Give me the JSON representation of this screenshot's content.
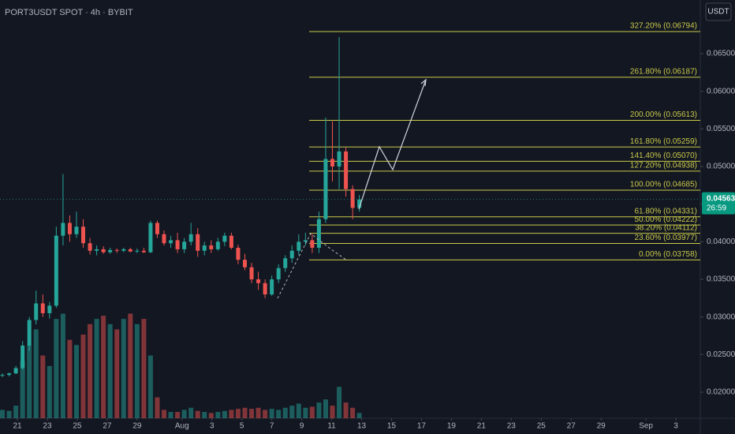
{
  "chart_data": {
    "type": "candlestick",
    "title": "PORT3USDT SPOT · 4h · BYBIT",
    "currency": "USDT",
    "up_color": "#26a69a",
    "down_color": "#ef5350",
    "fib_color": "#c9c94a",
    "xlim": [
      -1.16,
      45.63
    ],
    "xticks": [
      {
        "value": 0,
        "label": "21"
      },
      {
        "value": 2,
        "label": "23"
      },
      {
        "value": 4,
        "label": "25"
      },
      {
        "value": 6,
        "label": "27"
      },
      {
        "value": 8,
        "label": "29"
      },
      {
        "value": 11,
        "label": "Aug"
      },
      {
        "value": 13,
        "label": "3"
      },
      {
        "value": 15,
        "label": "5"
      },
      {
        "value": 17,
        "label": "7"
      },
      {
        "value": 19,
        "label": "9"
      },
      {
        "value": 21,
        "label": "11"
      },
      {
        "value": 23,
        "label": "13"
      },
      {
        "value": 25,
        "label": "15"
      },
      {
        "value": 27,
        "label": "17"
      },
      {
        "value": 29,
        "label": "19"
      },
      {
        "value": 31,
        "label": "21"
      },
      {
        "value": 33,
        "label": "23"
      },
      {
        "value": 35,
        "label": "25"
      },
      {
        "value": 37,
        "label": "27"
      },
      {
        "value": 39,
        "label": "29"
      },
      {
        "value": 42,
        "label": "Sep"
      },
      {
        "value": 44,
        "label": "3"
      }
    ],
    "ylim": [
      0.01654,
      0.07213
    ],
    "yticks": [
      {
        "value": 0.02,
        "label": "0.02000"
      },
      {
        "value": 0.025,
        "label": "0.02500"
      },
      {
        "value": 0.03,
        "label": "0.03000"
      },
      {
        "value": 0.035,
        "label": "0.03500"
      },
      {
        "value": 0.04,
        "label": "0.04000"
      },
      {
        "value": 0.045,
        "label": "0.04500"
      },
      {
        "value": 0.05,
        "label": "0.05000"
      },
      {
        "value": 0.055,
        "label": "0.05500"
      },
      {
        "value": 0.06,
        "label": "0.06000"
      },
      {
        "value": 0.065,
        "label": "0.06500"
      }
    ],
    "y2lim": [
      0,
      400
    ],
    "x": [
      -1.0,
      -0.55,
      -0.1,
      0.35,
      0.8,
      1.25,
      1.7,
      2.15,
      2.6,
      3.05,
      3.5,
      3.95,
      4.4,
      4.85,
      5.3,
      5.75,
      6.2,
      6.65,
      7.1,
      7.55,
      8.0,
      8.45,
      8.9,
      9.35,
      9.8,
      10.25,
      10.7,
      11.15,
      11.6,
      12.05,
      12.5,
      12.95,
      13.4,
      13.85,
      14.3,
      14.75,
      15.2,
      15.65,
      16.1,
      16.55,
      17.0,
      17.45,
      17.9,
      18.35,
      18.8,
      19.25,
      19.7,
      20.15,
      20.6,
      21.05,
      21.5,
      21.95,
      22.4,
      22.85
    ],
    "candles": [
      [
        0.0222,
        0.0225,
        0.022,
        0.0223
      ],
      [
        0.0223,
        0.0226,
        0.0221,
        0.0225
      ],
      [
        0.0225,
        0.0235,
        0.0224,
        0.0232
      ],
      [
        0.0232,
        0.0268,
        0.023,
        0.0262
      ],
      [
        0.0262,
        0.03,
        0.0255,
        0.0296
      ],
      [
        0.0296,
        0.0335,
        0.029,
        0.0318
      ],
      [
        0.0318,
        0.033,
        0.03,
        0.0305
      ],
      [
        0.0305,
        0.032,
        0.0298,
        0.0315
      ],
      [
        0.0315,
        0.042,
        0.0312,
        0.0408
      ],
      [
        0.0408,
        0.049,
        0.0395,
        0.0425
      ],
      [
        0.0425,
        0.0435,
        0.04,
        0.041
      ],
      [
        0.041,
        0.044,
        0.0405,
        0.042
      ],
      [
        0.042,
        0.043,
        0.0392,
        0.0398
      ],
      [
        0.0398,
        0.0405,
        0.0383,
        0.0388
      ],
      [
        0.0388,
        0.0395,
        0.0382,
        0.039
      ],
      [
        0.039,
        0.0394,
        0.0384,
        0.0386
      ],
      [
        0.0386,
        0.0392,
        0.0384,
        0.0389
      ],
      [
        0.0389,
        0.0391,
        0.0385,
        0.0388
      ],
      [
        0.0388,
        0.0392,
        0.0386,
        0.039
      ],
      [
        0.039,
        0.0392,
        0.0386,
        0.0387
      ],
      [
        0.0387,
        0.0391,
        0.0385,
        0.0388
      ],
      [
        0.0388,
        0.0392,
        0.0385,
        0.0386
      ],
      [
        0.0386,
        0.0428,
        0.0385,
        0.0425
      ],
      [
        0.0425,
        0.0428,
        0.0405,
        0.041
      ],
      [
        0.041,
        0.0415,
        0.0395,
        0.0398
      ],
      [
        0.0398,
        0.0408,
        0.0392,
        0.0402
      ],
      [
        0.0402,
        0.0412,
        0.0385,
        0.039
      ],
      [
        0.039,
        0.0405,
        0.0385,
        0.04
      ],
      [
        0.04,
        0.0425,
        0.0395,
        0.041
      ],
      [
        0.041,
        0.0418,
        0.038,
        0.0388
      ],
      [
        0.0388,
        0.04,
        0.0382,
        0.0395
      ],
      [
        0.0395,
        0.0402,
        0.0385,
        0.039
      ],
      [
        0.039,
        0.0405,
        0.0388,
        0.04
      ],
      [
        0.04,
        0.0412,
        0.0394,
        0.0408
      ],
      [
        0.0408,
        0.0412,
        0.039,
        0.0392
      ],
      [
        0.0392,
        0.0396,
        0.037,
        0.0376
      ],
      [
        0.0376,
        0.0384,
        0.0362,
        0.0366
      ],
      [
        0.0366,
        0.0372,
        0.0345,
        0.035
      ],
      [
        0.035,
        0.036,
        0.0336,
        0.0345
      ],
      [
        0.0345,
        0.035,
        0.0325,
        0.033
      ],
      [
        0.033,
        0.0355,
        0.0328,
        0.035
      ],
      [
        0.035,
        0.037,
        0.0345,
        0.0365
      ],
      [
        0.0365,
        0.0382,
        0.036,
        0.0378
      ],
      [
        0.0378,
        0.0395,
        0.0372,
        0.0388
      ],
      [
        0.0388,
        0.041,
        0.0382,
        0.04
      ],
      [
        0.04,
        0.0412,
        0.0395,
        0.0402
      ],
      [
        0.0402,
        0.041,
        0.0385,
        0.0392
      ],
      [
        0.0392,
        0.044,
        0.0385,
        0.043
      ],
      [
        0.043,
        0.0565,
        0.0425,
        0.051
      ],
      [
        0.051,
        0.056,
        0.048,
        0.05
      ],
      [
        0.05,
        0.0672,
        0.047,
        0.052
      ],
      [
        0.052,
        0.0525,
        0.046,
        0.047
      ],
      [
        0.047,
        0.0475,
        0.043,
        0.0445
      ],
      [
        0.0445,
        0.0462,
        0.044,
        0.0456
      ]
    ],
    "volumes": [
      8,
      7,
      12,
      55,
      70,
      85,
      60,
      50,
      95,
      100,
      75,
      70,
      80,
      90,
      95,
      98,
      90,
      85,
      95,
      100,
      90,
      95,
      60,
      20,
      8,
      6,
      6,
      8,
      10,
      7,
      6,
      5,
      6,
      7,
      8,
      9,
      10,
      9,
      10,
      8,
      9,
      8,
      10,
      12,
      14,
      10,
      11,
      15,
      18,
      12,
      30,
      15,
      10,
      5
    ],
    "fib_levels": [
      {
        "label": "327.20% (0.06794)",
        "value": 0.06794
      },
      {
        "label": "261.80% (0.06187)",
        "value": 0.06187
      },
      {
        "label": "200.00% (0.05613)",
        "value": 0.05613
      },
      {
        "label": "161.80% (0.05259)",
        "value": 0.05259
      },
      {
        "label": "141.40% (0.05070)",
        "value": 0.0507
      },
      {
        "label": "127.20% (0.04938)",
        "value": 0.04938
      },
      {
        "label": "100.00% (0.04685)",
        "value": 0.04685
      },
      {
        "label": "61.80% (0.04331)",
        "value": 0.04331
      },
      {
        "label": "50.00% (0.04222)",
        "value": 0.04222
      },
      {
        "label": "38.20% (0.04112)",
        "value": 0.04112
      },
      {
        "label": "23.60% (0.03977)",
        "value": 0.03977
      },
      {
        "label": "0.00% (0.03758)",
        "value": 0.03758
      }
    ],
    "last_price": {
      "value": 0.04563,
      "label": "0.04563"
    },
    "countdown": "26:59"
  }
}
